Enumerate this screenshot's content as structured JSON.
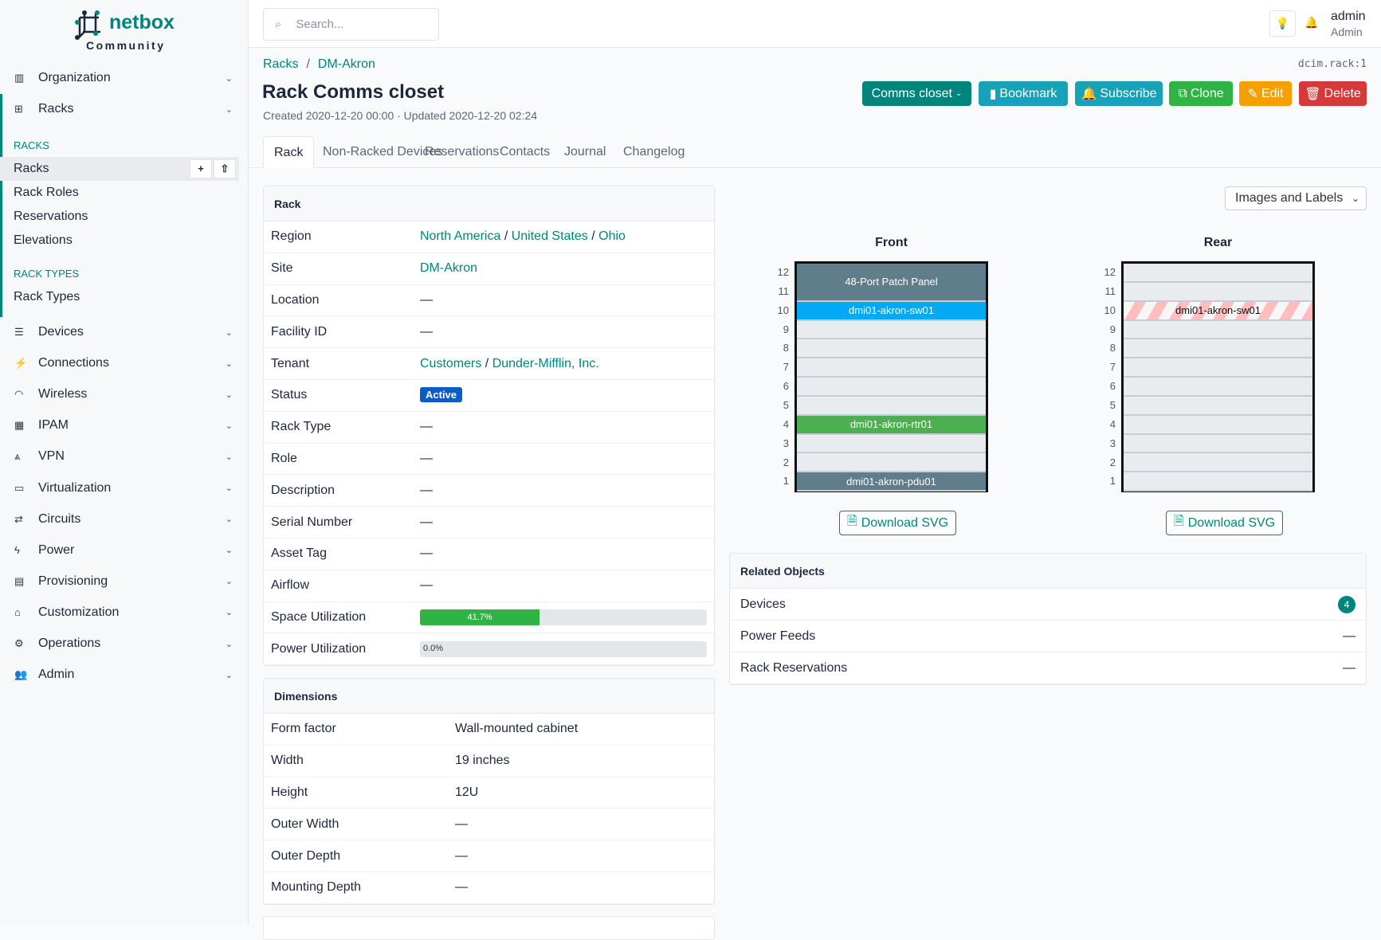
{
  "brand": {
    "name": "netbox",
    "edition": "Community"
  },
  "search": {
    "placeholder": "Search..."
  },
  "user": {
    "name": "admin",
    "role": "Admin"
  },
  "sidebar": {
    "top": [
      {
        "label": "Organization",
        "icon": "building-icon"
      },
      {
        "label": "Racks",
        "icon": "rack-icon"
      }
    ],
    "racks_section": "RACKS",
    "racks_items": [
      "Racks",
      "Rack Roles",
      "Reservations",
      "Elevations"
    ],
    "rack_types_section": "RACK TYPES",
    "rack_types_items": [
      "Rack Types"
    ],
    "menus": [
      "Devices",
      "Connections",
      "Wireless",
      "IPAM",
      "VPN",
      "Virtualization",
      "Circuits",
      "Power",
      "Provisioning",
      "Customization",
      "Operations",
      "Admin"
    ]
  },
  "breadcrumb": [
    "Racks",
    "DM-Akron"
  ],
  "object_id": "dcim.rack:1",
  "title": "Rack Comms closet",
  "meta": "Created 2020-12-20 00:00 · Updated 2020-12-20 02:24",
  "actions": {
    "rack_select": "Comms closet",
    "bookmark": "Bookmark",
    "subscribe": "Subscribe",
    "clone": "Clone",
    "edit": "Edit",
    "delete": "Delete"
  },
  "tabs": [
    "Rack",
    "Non-Racked Devices",
    "Reservations",
    "Contacts",
    "Journal",
    "Changelog"
  ],
  "rack_card": {
    "title": "Rack",
    "rows": [
      {
        "k": "Region",
        "v": "North America / United States / Ohio"
      },
      {
        "k": "Site",
        "v": "DM-Akron"
      },
      {
        "k": "Location",
        "v": "—"
      },
      {
        "k": "Facility ID",
        "v": "—"
      },
      {
        "k": "Tenant",
        "v": "Customers / Dunder-Mifflin, Inc."
      },
      {
        "k": "Status",
        "v": "Active"
      },
      {
        "k": "Rack Type",
        "v": "—"
      },
      {
        "k": "Role",
        "v": "—"
      },
      {
        "k": "Description",
        "v": "—"
      },
      {
        "k": "Serial Number",
        "v": "—"
      },
      {
        "k": "Asset Tag",
        "v": "—"
      },
      {
        "k": "Airflow",
        "v": "—"
      },
      {
        "k": "Space Utilization",
        "v": "41.7%",
        "percent": 41.7
      },
      {
        "k": "Power Utilization",
        "v": "0.0%",
        "percent": 0
      }
    ],
    "region_links": [
      "North America",
      "United States",
      "Ohio"
    ],
    "tenant_links": [
      "Customers",
      "Dunder-Mifflin, Inc."
    ]
  },
  "dimensions": {
    "title": "Dimensions",
    "rows": [
      {
        "k": "Form factor",
        "v": "Wall-mounted cabinet"
      },
      {
        "k": "Width",
        "v": "19 inches"
      },
      {
        "k": "Height",
        "v": "12U"
      },
      {
        "k": "Outer Width",
        "v": "—"
      },
      {
        "k": "Outer Depth",
        "v": "—"
      },
      {
        "k": "Mounting Depth",
        "v": "—"
      }
    ]
  },
  "elevation": {
    "view_select": "Images and Labels",
    "front_label": "Front",
    "rear_label": "Rear",
    "units": [
      12,
      11,
      10,
      9,
      8,
      7,
      6,
      5,
      4,
      3,
      2,
      1
    ],
    "front_devices": [
      {
        "name": "48-Port Patch Panel",
        "u": 11,
        "height": 2,
        "color": "#607d8b"
      },
      {
        "name": "dmi01-akron-sw01",
        "u": 10,
        "height": 1,
        "color": "#03a9f4"
      },
      {
        "name": "dmi01-akron-rtr01",
        "u": 4,
        "height": 1,
        "color": "#4caf50"
      },
      {
        "name": "dmi01-akron-pdu01",
        "u": 1,
        "height": 1,
        "color": "#607d8b"
      }
    ],
    "rear_devices": [
      {
        "name": "dmi01-akron-sw01",
        "u": 10,
        "height": 1,
        "occupied_from_front": true
      }
    ],
    "download": "Download SVG"
  },
  "related": {
    "title": "Related Objects",
    "items": [
      {
        "label": "Devices",
        "count": "4"
      },
      {
        "label": "Power Feeds",
        "count": "—"
      },
      {
        "label": "Rack Reservations",
        "count": "—"
      }
    ]
  }
}
